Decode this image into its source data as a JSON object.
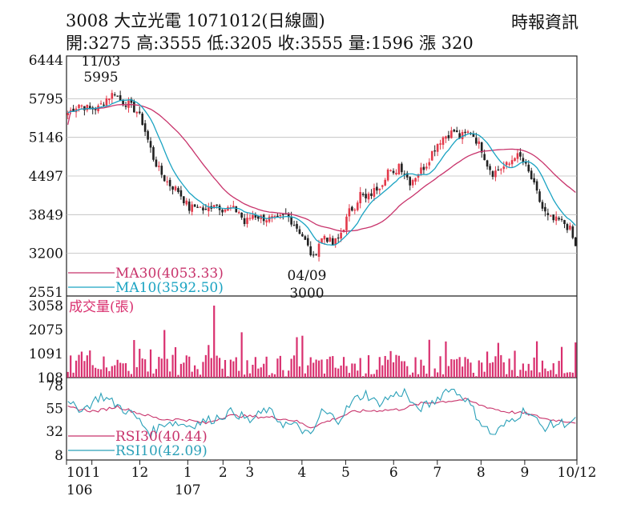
{
  "header": {
    "title": "3008  大立光電 1071012(日線圖)",
    "stats": "開:3275 高:3555 低:3205 收:3555 量:1596 漲 320",
    "source": "時報資訊"
  },
  "colors": {
    "up": "#e33a4b",
    "down": "#222222",
    "ma30": "#c8336b",
    "ma10": "#1aa3c2",
    "volume": "#d9306f",
    "rsi30": "#c8336b",
    "rsi10": "#2aa0b8"
  },
  "chart_data": [
    {
      "type": "candlestick",
      "panel": "price",
      "y_ticks": [
        "6444",
        "5795",
        "5146",
        "4497",
        "3849",
        "3200",
        "2551"
      ],
      "ylim": [
        2551,
        6444
      ],
      "annotations": [
        {
          "date": "11/03",
          "value": "5995",
          "kind": "high"
        },
        {
          "date": "04/09",
          "value": "3000",
          "kind": "low"
        }
      ],
      "legend": [
        {
          "name": "MA30",
          "label": "MA30(4053.33)",
          "last": 4053.33
        },
        {
          "name": "MA10",
          "label": "MA10(3592.50)",
          "last": 3592.5
        }
      ],
      "close_path": [
        [
          0,
          5560
        ],
        [
          4,
          5700
        ],
        [
          8,
          5620
        ],
        [
          11,
          5640
        ],
        [
          14,
          5800
        ],
        [
          17,
          5900
        ],
        [
          19,
          5760
        ],
        [
          22,
          5700
        ],
        [
          25,
          5580
        ],
        [
          27,
          5400
        ],
        [
          29,
          5100
        ],
        [
          31,
          4800
        ],
        [
          33,
          4600
        ],
        [
          35,
          4450
        ],
        [
          37,
          4350
        ],
        [
          40,
          4250
        ],
        [
          42,
          4100
        ],
        [
          44,
          3950
        ],
        [
          47,
          4000
        ],
        [
          50,
          3900
        ],
        [
          53,
          4050
        ],
        [
          56,
          3950
        ],
        [
          59,
          3950
        ],
        [
          62,
          3900
        ],
        [
          64,
          3700
        ],
        [
          67,
          3850
        ],
        [
          70,
          3800
        ],
        [
          73,
          3780
        ],
        [
          76,
          3760
        ],
        [
          79,
          3850
        ],
        [
          82,
          3700
        ],
        [
          85,
          3500
        ],
        [
          87,
          3300
        ],
        [
          89,
          3100
        ],
        [
          91,
          3380
        ],
        [
          93,
          3500
        ],
        [
          96,
          3350
        ],
        [
          98,
          3450
        ],
        [
          100,
          3650
        ],
        [
          102,
          3900
        ],
        [
          104,
          4000
        ],
        [
          106,
          4200
        ],
        [
          108,
          4100
        ],
        [
          110,
          4200
        ],
        [
          112,
          4300
        ],
        [
          114,
          4400
        ],
        [
          116,
          4600
        ],
        [
          118,
          4500
        ],
        [
          120,
          4700
        ],
        [
          122,
          4550
        ],
        [
          124,
          4400
        ],
        [
          126,
          4500
        ],
        [
          128,
          4600
        ],
        [
          130,
          4700
        ],
        [
          132,
          4900
        ],
        [
          134,
          5050
        ],
        [
          136,
          5150
        ],
        [
          138,
          5200
        ],
        [
          140,
          5250
        ],
        [
          142,
          5150
        ],
        [
          144,
          5200
        ],
        [
          146,
          5250
        ],
        [
          148,
          5100
        ],
        [
          150,
          4950
        ],
        [
          152,
          4700
        ],
        [
          154,
          4550
        ],
        [
          156,
          4600
        ],
        [
          158,
          4650
        ],
        [
          160,
          4700
        ],
        [
          162,
          4850
        ],
        [
          164,
          4800
        ],
        [
          166,
          4650
        ],
        [
          168,
          4450
        ],
        [
          170,
          4200
        ],
        [
          172,
          3950
        ],
        [
          174,
          3800
        ],
        [
          176,
          3750
        ],
        [
          178,
          3750
        ],
        [
          180,
          3700
        ],
        [
          182,
          3600
        ],
        [
          184,
          3300
        ],
        [
          185,
          3555
        ]
      ]
    },
    {
      "type": "bar",
      "panel": "volume",
      "title": "成交量(張)",
      "y_ticks": [
        "3058",
        "2075",
        "1091",
        "108"
      ],
      "ylim": [
        108,
        3058
      ]
    },
    {
      "type": "line",
      "panel": "rsi",
      "y_ticks": [
        "78",
        "55",
        "32",
        "8"
      ],
      "ylim": [
        8,
        78
      ],
      "series": [
        {
          "name": "RSI30",
          "label": "RSI30(40.44)",
          "last": 40.44,
          "path": [
            [
              0,
              56
            ],
            [
              10,
              52
            ],
            [
              18,
              57
            ],
            [
              26,
              50
            ],
            [
              34,
              44
            ],
            [
              42,
              44
            ],
            [
              50,
              40
            ],
            [
              58,
              48
            ],
            [
              66,
              47
            ],
            [
              74,
              46
            ],
            [
              82,
              43
            ],
            [
              88,
              36
            ],
            [
              96,
              44
            ],
            [
              104,
              52
            ],
            [
              112,
              53
            ],
            [
              120,
              54
            ],
            [
              128,
              60
            ],
            [
              136,
              62
            ],
            [
              144,
              64
            ],
            [
              150,
              58
            ],
            [
              158,
              52
            ],
            [
              166,
              50
            ],
            [
              174,
              44
            ],
            [
              185,
              41
            ]
          ]
        },
        {
          "name": "RSI10",
          "label": "RSI10(42.09)",
          "last": 42.09,
          "path": [
            [
              0,
              58
            ],
            [
              6,
              55
            ],
            [
              12,
              68
            ],
            [
              18,
              58
            ],
            [
              24,
              48
            ],
            [
              30,
              30
            ],
            [
              36,
              42
            ],
            [
              44,
              38
            ],
            [
              52,
              44
            ],
            [
              60,
              52
            ],
            [
              66,
              42
            ],
            [
              72,
              54
            ],
            [
              78,
              40
            ],
            [
              84,
              36
            ],
            [
              88,
              26
            ],
            [
              92,
              52
            ],
            [
              98,
              44
            ],
            [
              104,
              64
            ],
            [
              108,
              70
            ],
            [
              112,
              60
            ],
            [
              118,
              68
            ],
            [
              122,
              72
            ],
            [
              126,
              54
            ],
            [
              132,
              60
            ],
            [
              138,
              76
            ],
            [
              144,
              66
            ],
            [
              150,
              40
            ],
            [
              154,
              28
            ],
            [
              160,
              42
            ],
            [
              166,
              54
            ],
            [
              172,
              36
            ],
            [
              178,
              40
            ],
            [
              185,
              42
            ]
          ]
        }
      ]
    }
  ],
  "x_axis": {
    "ticks": [
      {
        "label": "10",
        "year": "106",
        "day": 0
      },
      {
        "label": "11",
        "day": 18
      },
      {
        "label": "12",
        "day": 52
      },
      {
        "label": "1",
        "year": "107",
        "day": 86
      },
      {
        "label": "2",
        "day": 111
      },
      {
        "label": "3",
        "day": 130
      },
      {
        "label": "4",
        "day": 167
      },
      {
        "label": "5",
        "day": 198
      },
      {
        "label": "6",
        "day": 232
      },
      {
        "label": "7",
        "day": 263
      },
      {
        "label": "8",
        "day": 294
      },
      {
        "label": "9",
        "day": 325
      },
      {
        "label": "10/12",
        "day": 362
      }
    ]
  }
}
